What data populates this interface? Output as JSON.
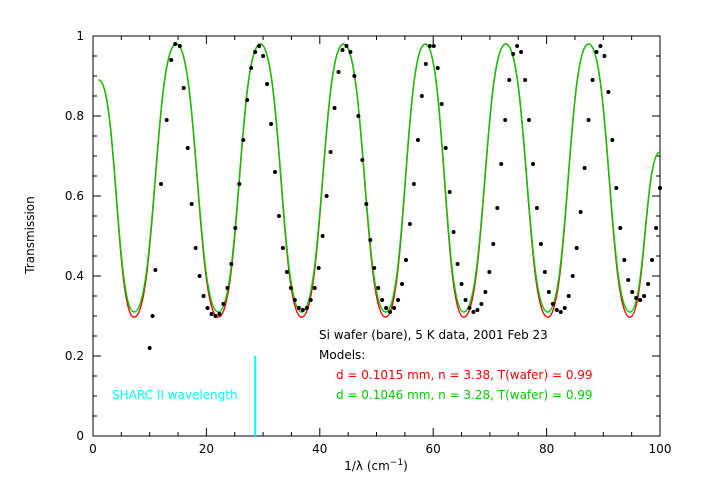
{
  "chart_data": {
    "type": "line",
    "xlabel": "1/λ (cm",
    "xlabel_sup": "−1",
    "xlabel_close": ")",
    "ylabel": "Transmission",
    "xlim": [
      0,
      100
    ],
    "ylim": [
      0,
      1
    ],
    "xticks": [
      0,
      20,
      40,
      60,
      80,
      100
    ],
    "yticks": [
      0,
      0.2,
      0.4,
      0.6,
      0.8,
      1
    ],
    "xtick_labels": [
      "0",
      "20",
      "40",
      "60",
      "80",
      "100"
    ],
    "ytick_labels": [
      "0",
      "0.2",
      "0.4",
      "0.6",
      "0.8",
      "1"
    ],
    "grid": false,
    "annotations": {
      "title_line": "Si wafer (bare), 5 K data, 2001 Feb 23",
      "models_label": "Models:",
      "model_red": "d = 0.1015 mm, n = 3.38, T(wafer) = 0.99",
      "model_green": "d = 0.1046 mm, n = 3.28, T(wafer) = 0.99",
      "sharc_label": "SHARC II wavelength"
    },
    "sharc_line": {
      "x": 28.6,
      "y_range": [
        0,
        0.2
      ]
    },
    "series": [
      {
        "kind": "model",
        "color": "#ff0000",
        "x": [
          1,
          7.25,
          14.7,
          22.1,
          29.5,
          36.8,
          44.2,
          51.6,
          58.6,
          65.4,
          72.8,
          80.2,
          87.4,
          94.7,
          100
        ],
        "y": [
          0.89,
          0.297,
          0.98,
          0.297,
          0.98,
          0.297,
          0.98,
          0.297,
          0.98,
          0.297,
          0.98,
          0.297,
          0.98,
          0.297,
          0.71
        ]
      },
      {
        "kind": "model",
        "color": "#00cc00",
        "x": [
          1,
          7.25,
          14.7,
          22.1,
          29.5,
          36.8,
          44.2,
          51.6,
          58.6,
          65.4,
          72.8,
          80.2,
          87.4,
          94.7,
          100
        ],
        "y": [
          0.89,
          0.31,
          0.98,
          0.31,
          0.98,
          0.31,
          0.98,
          0.31,
          0.98,
          0.31,
          0.98,
          0.31,
          0.98,
          0.31,
          0.71
        ]
      },
      {
        "kind": "data",
        "color": "#000000",
        "x": [
          10,
          10.5,
          11,
          12,
          13,
          13.8,
          14.5,
          15.3,
          16,
          16.7,
          17.4,
          18.1,
          18.8,
          19.5,
          20.2,
          20.9,
          21.6,
          22.3,
          23,
          23.7,
          24.4,
          25.1,
          25.8,
          26.5,
          27.2,
          27.9,
          28.6,
          29.3,
          30,
          30.7,
          31.4,
          32.1,
          32.8,
          33.5,
          34.2,
          34.9,
          35.6,
          36.3,
          37,
          37.7,
          38.4,
          39.1,
          39.8,
          40.5,
          41.2,
          41.9,
          42.6,
          43.3,
          44,
          44.7,
          45.4,
          46.1,
          46.8,
          47.5,
          48.2,
          48.9,
          49.6,
          50.3,
          51,
          51.7,
          52.4,
          53.1,
          53.8,
          54.5,
          55.2,
          55.9,
          56.6,
          57.3,
          58,
          58.7,
          59.4,
          60.1,
          60.8,
          61.5,
          62.2,
          62.9,
          63.6,
          64.3,
          65,
          65.7,
          66.4,
          67.1,
          67.8,
          68.5,
          69.2,
          69.9,
          70.6,
          71.3,
          72,
          72.7,
          73.4,
          74.1,
          74.8,
          75.5,
          76.2,
          76.9,
          77.6,
          78.3,
          79,
          79.7,
          80.4,
          81.1,
          81.8,
          82.5,
          83.2,
          83.9,
          84.6,
          85.3,
          86,
          86.7,
          87.4,
          88.1,
          88.8,
          89.5,
          90.2,
          90.9,
          91.6,
          92.3,
          93,
          93.7,
          94.4,
          95.1,
          95.8,
          96.5,
          97.2,
          97.9,
          98.6,
          99.3,
          100
        ],
        "y": [
          0.22,
          0.3,
          0.415,
          0.63,
          0.79,
          0.94,
          0.98,
          0.975,
          0.87,
          0.72,
          0.58,
          0.47,
          0.4,
          0.35,
          0.32,
          0.305,
          0.3,
          0.305,
          0.33,
          0.37,
          0.43,
          0.52,
          0.63,
          0.74,
          0.84,
          0.92,
          0.96,
          0.975,
          0.95,
          0.88,
          0.78,
          0.66,
          0.55,
          0.47,
          0.41,
          0.37,
          0.34,
          0.32,
          0.315,
          0.32,
          0.34,
          0.37,
          0.42,
          0.5,
          0.6,
          0.71,
          0.82,
          0.91,
          0.965,
          0.975,
          0.96,
          0.9,
          0.8,
          0.69,
          0.58,
          0.49,
          0.42,
          0.37,
          0.34,
          0.32,
          0.31,
          0.32,
          0.34,
          0.38,
          0.44,
          0.53,
          0.63,
          0.74,
          0.85,
          0.93,
          0.975,
          0.975,
          0.92,
          0.83,
          0.72,
          0.61,
          0.51,
          0.43,
          0.38,
          0.34,
          0.32,
          0.31,
          0.315,
          0.33,
          0.36,
          0.41,
          0.48,
          0.57,
          0.68,
          0.79,
          0.89,
          0.955,
          0.975,
          0.96,
          0.89,
          0.79,
          0.68,
          0.57,
          0.48,
          0.41,
          0.36,
          0.33,
          0.315,
          0.31,
          0.32,
          0.35,
          0.4,
          0.47,
          0.56,
          0.67,
          0.79,
          0.89,
          0.96,
          0.975,
          0.95,
          0.86,
          0.74,
          0.62,
          0.52,
          0.44,
          0.39,
          0.36,
          0.345,
          0.34,
          0.35,
          0.38,
          0.44,
          0.52,
          0.62
        ]
      }
    ]
  }
}
